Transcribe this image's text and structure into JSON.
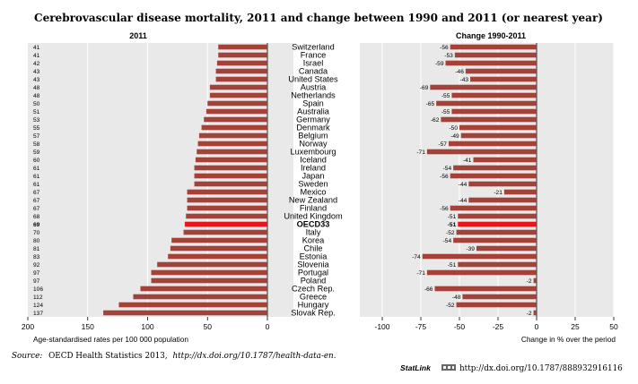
{
  "figure": {
    "title": "Cerebrovascular disease mortality, 2011 and change between 1990 and 2011 (or nearest year)",
    "source_label": "Source:",
    "source_text": "OECD Health Statistics 2013,",
    "source_link": "http://dx.doi.org/10.1787/health-data-en",
    "source_end": ".",
    "statlink_word": "StatLink",
    "statlink_url": "http://dx.doi.org/10.1787/888932916116"
  },
  "colors": {
    "bar": "#a4423a",
    "highlight": "#e8161b",
    "panel_bg": "#e9e9e9",
    "grid": "#ffffff"
  },
  "chart_data": [
    {
      "type": "bar",
      "orientation": "horizontal",
      "title": "2011",
      "xlabel": "Age-standardised rates per 100 000 population",
      "xlim": [
        200,
        0
      ],
      "x_reversed": true,
      "xticks": [
        "200",
        "150",
        "100",
        "50",
        "0"
      ],
      "highlight_category": "OECD33",
      "categories": [
        "Switzerland",
        "France",
        "Israel",
        "Canada",
        "United States",
        "Austria",
        "Netherlands",
        "Spain",
        "Australia",
        "Germany",
        "Denmark",
        "Belgium",
        "Norway",
        "Luxembourg",
        "Iceland",
        "Ireland",
        "Japan",
        "Sweden",
        "Mexico",
        "New Zealand",
        "Finland",
        "United Kingdom",
        "OECD33",
        "Italy",
        "Korea",
        "Chile",
        "Estonia",
        "Slovenia",
        "Portugal",
        "Poland",
        "Czech Rep.",
        "Greece",
        "Hungary",
        "Slovak Rep."
      ],
      "value_labels": [
        "41",
        "41",
        "42",
        "43",
        "43",
        "48",
        "48",
        "50",
        "51",
        "53",
        "55",
        "57",
        "58",
        "59",
        "60",
        "61",
        "61",
        "61",
        "67",
        "67",
        "67",
        "68",
        "69",
        "70",
        "80",
        "81",
        "83",
        "92",
        "97",
        "97",
        "106",
        "112",
        "124",
        "137"
      ],
      "values": [
        41,
        41,
        42,
        43,
        43,
        48,
        48,
        50,
        51,
        53,
        55,
        57,
        58,
        59,
        60,
        61,
        61,
        61,
        67,
        67,
        67,
        68,
        69,
        70,
        80,
        81,
        83,
        92,
        97,
        97,
        106,
        112,
        124,
        137
      ]
    },
    {
      "type": "bar",
      "orientation": "horizontal",
      "title": "Change 1990-2011",
      "xlabel": "Change in % over the period",
      "xlim": [
        -100,
        50
      ],
      "xticks": [
        "-100",
        "-75",
        "-50",
        "-25",
        "0",
        "25",
        "50"
      ],
      "highlight_category": "OECD33",
      "categories": [
        "Switzerland",
        "France",
        "Israel",
        "Canada",
        "United States",
        "Austria",
        "Netherlands",
        "Spain",
        "Australia",
        "Germany",
        "Denmark",
        "Belgium",
        "Norway",
        "Luxembourg",
        "Iceland",
        "Ireland",
        "Japan",
        "Sweden",
        "Mexico",
        "New Zealand",
        "Finland",
        "United Kingdom",
        "OECD33",
        "Italy",
        "Korea",
        "Chile",
        "Estonia",
        "Slovenia",
        "Portugal",
        "Poland",
        "Czech Rep.",
        "Greece",
        "Hungary",
        "Slovak Rep."
      ],
      "value_labels": [
        "-56",
        "-53",
        "-59",
        "-46",
        "-43",
        "-69",
        "-55",
        "-65",
        "-55",
        "-62",
        "-50",
        "-49",
        "-57",
        "-71",
        "-41",
        "-54",
        "-56",
        "-44",
        "-21",
        "-44",
        "-56",
        "-51",
        "-51",
        "-52",
        "-54",
        "-39",
        "-74",
        "-51",
        "-71",
        "-2",
        "-66",
        "-48",
        "-52",
        "-2"
      ],
      "values": [
        -56,
        -53,
        -59,
        -46,
        -43,
        -69,
        -55,
        -65,
        -55,
        -62,
        -50,
        -49,
        -57,
        -71,
        -41,
        -54,
        -56,
        -44,
        -21,
        -44,
        -56,
        -51,
        -51,
        -52,
        -54,
        -39,
        -74,
        -51,
        -71,
        -2,
        -66,
        -48,
        -52,
        -2
      ]
    }
  ]
}
